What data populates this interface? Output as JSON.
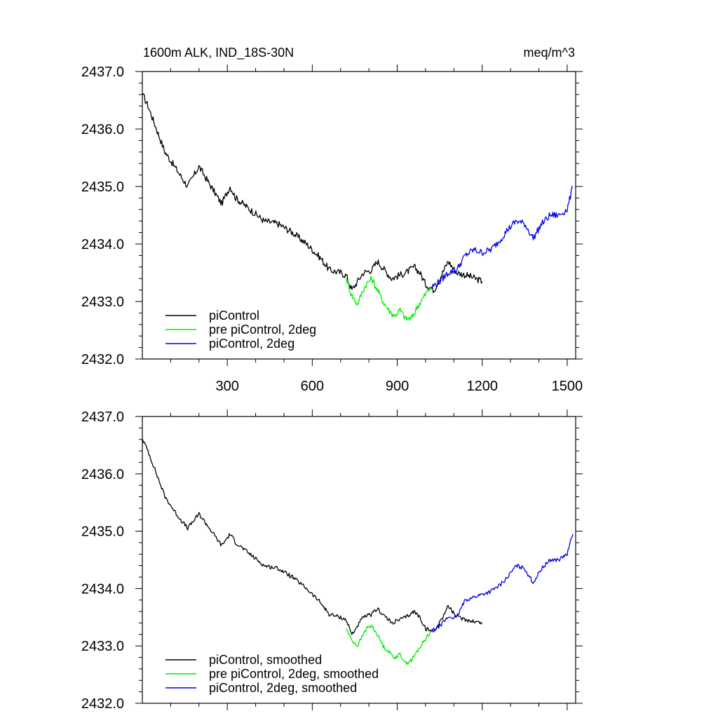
{
  "title_left": "1600m ALK, IND_18S-30N",
  "title_right": "meq/m^3",
  "colors": {
    "black": "#000000",
    "green": "#00ee00",
    "blue": "#0000ee"
  },
  "chart_data": [
    {
      "type": "line",
      "xlim": [
        0,
        1530
      ],
      "ylim": [
        2432.0,
        2437.0
      ],
      "xticks": [
        300,
        600,
        900,
        1200,
        1500
      ],
      "xticklabels": [
        "300",
        "600",
        "900",
        "1200",
        "1500"
      ],
      "yticks": [
        2432.0,
        2433.0,
        2434.0,
        2435.0,
        2436.0,
        2437.0
      ],
      "yticklabels": [
        "2432.0",
        "2433.0",
        "2434.0",
        "2435.0",
        "2436.0",
        "2437.0"
      ],
      "legend": [
        "piControl",
        "pre piControl, 2deg",
        "piControl, 2deg"
      ],
      "legend_position": "bottom-left",
      "series": [
        {
          "name": "piControl",
          "color": "#000000",
          "x": [
            1,
            20,
            50,
            80,
            120,
            160,
            200,
            230,
            280,
            310,
            330,
            380,
            430,
            480,
            530,
            580,
            630,
            660,
            700,
            720,
            740,
            780,
            810,
            830,
            880,
            930,
            960,
            980,
            1000,
            1030,
            1060,
            1080,
            1110,
            1150,
            1200
          ],
          "y": [
            2436.6,
            2436.4,
            2436.0,
            2435.6,
            2435.3,
            2435.0,
            2435.35,
            2435.1,
            2434.7,
            2435.0,
            2434.8,
            2434.6,
            2434.4,
            2434.35,
            2434.2,
            2434.0,
            2433.75,
            2433.55,
            2433.5,
            2433.45,
            2433.2,
            2433.5,
            2433.55,
            2433.7,
            2433.4,
            2433.5,
            2433.6,
            2433.5,
            2433.3,
            2433.2,
            2433.5,
            2433.7,
            2433.5,
            2433.45,
            2433.35
          ]
        },
        {
          "name": "pre piControl, 2deg",
          "color": "#00ee00",
          "x": [
            720,
            740,
            760,
            775,
            790,
            810,
            830,
            850,
            870,
            890,
            910,
            930,
            950,
            970,
            990,
            1010,
            1020
          ],
          "y": [
            2433.4,
            2433.1,
            2432.95,
            2433.15,
            2433.3,
            2433.4,
            2433.2,
            2433.0,
            2432.85,
            2432.75,
            2432.85,
            2432.7,
            2432.7,
            2432.9,
            2433.05,
            2433.2,
            2433.25
          ]
        },
        {
          "name": "piControl, 2deg",
          "color": "#0000ee",
          "x": [
            1020,
            1050,
            1080,
            1110,
            1140,
            1170,
            1200,
            1230,
            1260,
            1290,
            1320,
            1350,
            1380,
            1410,
            1440,
            1470,
            1500,
            1520
          ],
          "y": [
            2433.25,
            2433.35,
            2433.5,
            2433.55,
            2433.8,
            2433.9,
            2433.85,
            2433.9,
            2434.05,
            2434.25,
            2434.4,
            2434.35,
            2434.1,
            2434.35,
            2434.5,
            2434.5,
            2434.6,
            2435.0
          ]
        }
      ]
    },
    {
      "type": "line",
      "xlim": [
        0,
        1530
      ],
      "ylim": [
        2432.0,
        2437.0
      ],
      "xticks": [
        300,
        600,
        900,
        1200,
        1500
      ],
      "xticklabels": [],
      "yticks": [
        2432.0,
        2433.0,
        2434.0,
        2435.0,
        2436.0,
        2437.0
      ],
      "yticklabels": [
        "2432.0",
        "2433.0",
        "2434.0",
        "2435.0",
        "2436.0",
        "2437.0"
      ],
      "legend": [
        "piControl, smoothed",
        "pre piControl, 2deg, smoothed",
        "piControl, 2deg, smoothed"
      ],
      "legend_position": "bottom-left",
      "series": [
        {
          "name": "piControl, smoothed",
          "color": "#000000",
          "x": [
            1,
            20,
            50,
            80,
            120,
            160,
            200,
            230,
            280,
            310,
            330,
            380,
            430,
            480,
            530,
            580,
            630,
            660,
            700,
            720,
            740,
            780,
            810,
            830,
            880,
            930,
            960,
            980,
            1000,
            1030,
            1060,
            1080,
            1110,
            1150,
            1200
          ],
          "y": [
            2436.6,
            2436.4,
            2436.0,
            2435.6,
            2435.3,
            2435.05,
            2435.3,
            2435.1,
            2434.75,
            2434.95,
            2434.8,
            2434.6,
            2434.4,
            2434.35,
            2434.2,
            2434.0,
            2433.75,
            2433.55,
            2433.5,
            2433.45,
            2433.2,
            2433.5,
            2433.55,
            2433.65,
            2433.4,
            2433.5,
            2433.6,
            2433.5,
            2433.3,
            2433.25,
            2433.5,
            2433.7,
            2433.5,
            2433.45,
            2433.4
          ]
        },
        {
          "name": "pre piControl, 2deg, smoothed",
          "color": "#00ee00",
          "x": [
            720,
            740,
            760,
            775,
            790,
            810,
            830,
            850,
            870,
            890,
            910,
            930,
            950,
            970,
            990,
            1010,
            1020
          ],
          "y": [
            2433.3,
            2433.1,
            2433.0,
            2433.15,
            2433.3,
            2433.35,
            2433.2,
            2433.0,
            2432.9,
            2432.8,
            2432.85,
            2432.7,
            2432.75,
            2432.9,
            2433.05,
            2433.2,
            2433.25
          ]
        },
        {
          "name": "piControl, 2deg, smoothed",
          "color": "#0000ee",
          "x": [
            1020,
            1050,
            1080,
            1110,
            1140,
            1170,
            1200,
            1230,
            1260,
            1290,
            1320,
            1350,
            1380,
            1410,
            1440,
            1470,
            1500,
            1520
          ],
          "y": [
            2433.25,
            2433.35,
            2433.5,
            2433.5,
            2433.8,
            2433.85,
            2433.9,
            2433.95,
            2434.05,
            2434.2,
            2434.4,
            2434.35,
            2434.1,
            2434.35,
            2434.5,
            2434.5,
            2434.6,
            2434.95
          ]
        }
      ]
    }
  ]
}
